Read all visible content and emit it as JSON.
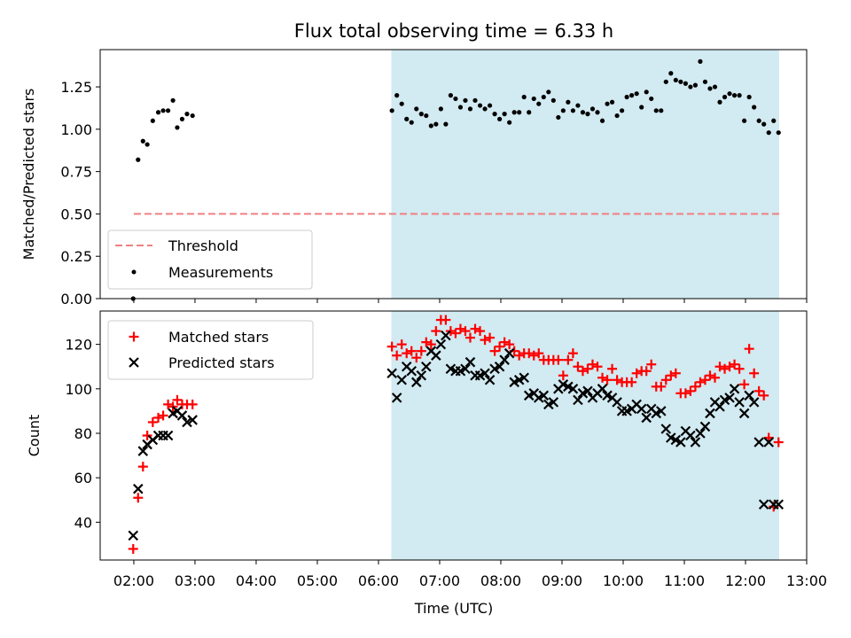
{
  "title": "Flux total observing time = 6.33 h",
  "xlabel": "Time (UTC)",
  "xticks": [
    {
      "h": 2,
      "label": "02:00"
    },
    {
      "h": 3,
      "label": "03:00"
    },
    {
      "h": 4,
      "label": "04:00"
    },
    {
      "h": 5,
      "label": "05:00"
    },
    {
      "h": 6,
      "label": "06:00"
    },
    {
      "h": 7,
      "label": "07:00"
    },
    {
      "h": 8,
      "label": "08:00"
    },
    {
      "h": 9,
      "label": "09:00"
    },
    {
      "h": 10,
      "label": "10:00"
    },
    {
      "h": 11,
      "label": "11:00"
    },
    {
      "h": 12,
      "label": "12:00"
    },
    {
      "h": 13,
      "label": "13:00"
    }
  ],
  "colors": {
    "threshold": "#f08080",
    "span": "#add8e6",
    "matched": "#ff0000",
    "predicted": "#000000",
    "measure": "#000000"
  },
  "chart_data": [
    {
      "type": "scatter",
      "panel": "top",
      "ylabel": "Matched/Predicted stars",
      "xlim": [
        1.45,
        13.0
      ],
      "ylim": [
        0.0,
        1.47
      ],
      "yticks": [
        {
          "v": 0.0,
          "label": "0.00"
        },
        {
          "v": 0.25,
          "label": "0.25"
        },
        {
          "v": 0.5,
          "label": "0.50"
        },
        {
          "v": 0.75,
          "label": "0.75"
        },
        {
          "v": 1.0,
          "label": "1.00"
        },
        {
          "v": 1.25,
          "label": "1.25"
        }
      ],
      "observing_span": [
        6.21,
        12.55
      ],
      "threshold": {
        "value": 0.5,
        "x": [
          2.0,
          12.55
        ],
        "label": "Threshold"
      },
      "legend": {
        "position": "lower-left",
        "entries": [
          "Threshold",
          "Measurements"
        ]
      },
      "series": [
        {
          "name": "Measurements",
          "x": [
            1.99,
            2.07,
            2.15,
            2.22,
            2.31,
            2.4,
            2.48,
            2.56,
            2.64,
            2.71,
            2.79,
            2.87,
            2.96,
            6.22,
            6.3,
            6.38,
            6.46,
            6.54,
            6.62,
            6.7,
            6.78,
            6.86,
            6.94,
            7.02,
            7.1,
            7.18,
            7.26,
            7.34,
            7.42,
            7.5,
            7.58,
            7.66,
            7.74,
            7.82,
            7.9,
            7.98,
            8.06,
            8.14,
            8.22,
            8.3,
            8.38,
            8.46,
            8.54,
            8.62,
            8.7,
            8.78,
            8.86,
            8.94,
            9.02,
            9.1,
            9.18,
            9.26,
            9.34,
            9.42,
            9.5,
            9.58,
            9.66,
            9.74,
            9.82,
            9.9,
            9.98,
            10.06,
            10.14,
            10.22,
            10.3,
            10.38,
            10.46,
            10.54,
            10.62,
            10.7,
            10.78,
            10.86,
            10.94,
            11.02,
            11.1,
            11.18,
            11.26,
            11.34,
            11.42,
            11.5,
            11.58,
            11.66,
            11.74,
            11.82,
            11.9,
            11.98,
            12.06,
            12.14,
            12.22,
            12.3,
            12.38,
            12.46,
            12.54
          ],
          "y": [
            0.0,
            0.82,
            0.93,
            0.91,
            1.05,
            1.1,
            1.11,
            1.11,
            1.17,
            1.01,
            1.06,
            1.09,
            1.08,
            1.11,
            1.2,
            1.15,
            1.06,
            1.04,
            1.12,
            1.09,
            1.08,
            1.02,
            1.03,
            1.12,
            1.03,
            1.2,
            1.18,
            1.13,
            1.17,
            1.12,
            1.17,
            1.14,
            1.12,
            1.14,
            1.09,
            1.06,
            1.09,
            1.04,
            1.1,
            1.1,
            1.19,
            1.1,
            1.18,
            1.15,
            1.19,
            1.22,
            1.17,
            1.07,
            1.11,
            1.16,
            1.11,
            1.14,
            1.1,
            1.09,
            1.12,
            1.1,
            1.05,
            1.15,
            1.16,
            1.08,
            1.11,
            1.19,
            1.2,
            1.21,
            1.13,
            1.22,
            1.18,
            1.11,
            1.11,
            1.28,
            1.33,
            1.29,
            1.28,
            1.27,
            1.25,
            1.26,
            1.4,
            1.28,
            1.24,
            1.25,
            1.16,
            1.19,
            1.21,
            1.2,
            1.2,
            1.05,
            1.19,
            1.13,
            1.05,
            1.03,
            0.98,
            1.05,
            0.98
          ]
        }
      ]
    },
    {
      "type": "scatter",
      "panel": "bottom",
      "ylabel": "Count",
      "xlim": [
        1.45,
        13.0
      ],
      "ylim": [
        23,
        135
      ],
      "yticks": [
        {
          "v": 40,
          "label": "40"
        },
        {
          "v": 60,
          "label": "60"
        },
        {
          "v": 80,
          "label": "80"
        },
        {
          "v": 100,
          "label": "100"
        },
        {
          "v": 120,
          "label": "120"
        }
      ],
      "observing_span": [
        6.21,
        12.55
      ],
      "legend": {
        "position": "upper-left",
        "entries": [
          "Matched stars",
          "Predicted stars"
        ]
      },
      "series": [
        {
          "name": "Matched stars",
          "marker": "plus",
          "x": [
            1.99,
            2.07,
            2.15,
            2.22,
            2.31,
            2.4,
            2.48,
            2.56,
            2.64,
            2.71,
            2.79,
            2.87,
            2.96,
            6.22,
            6.3,
            6.38,
            6.46,
            6.54,
            6.62,
            6.7,
            6.78,
            6.86,
            6.94,
            7.02,
            7.1,
            7.18,
            7.26,
            7.34,
            7.42,
            7.5,
            7.58,
            7.66,
            7.74,
            7.82,
            7.9,
            7.98,
            8.06,
            8.14,
            8.22,
            8.3,
            8.38,
            8.46,
            8.54,
            8.62,
            8.7,
            8.78,
            8.86,
            8.94,
            9.02,
            9.1,
            9.18,
            9.26,
            9.34,
            9.42,
            9.5,
            9.58,
            9.66,
            9.74,
            9.82,
            9.9,
            9.98,
            10.06,
            10.14,
            10.22,
            10.3,
            10.38,
            10.46,
            10.54,
            10.62,
            10.7,
            10.78,
            10.86,
            10.94,
            11.02,
            11.1,
            11.18,
            11.26,
            11.34,
            11.42,
            11.5,
            11.58,
            11.66,
            11.74,
            11.82,
            11.9,
            11.98,
            12.06,
            12.14,
            12.22,
            12.3,
            12.38,
            12.46,
            12.54
          ],
          "y": [
            28,
            51,
            65,
            79,
            85,
            87,
            88,
            93,
            92,
            95,
            93,
            93,
            93,
            119,
            115,
            120,
            116,
            117,
            114,
            117,
            121,
            120,
            126,
            131,
            131,
            126,
            125,
            127,
            126,
            123,
            127,
            126,
            122,
            123,
            117,
            119,
            121,
            120,
            117,
            115,
            116,
            116,
            115,
            116,
            113,
            113,
            113,
            113,
            106,
            113,
            116,
            110,
            108,
            109,
            111,
            110,
            105,
            104,
            109,
            104,
            103,
            103,
            103,
            107,
            108,
            108,
            111,
            101,
            101,
            104,
            106,
            107,
            98,
            98,
            99,
            101,
            103,
            104,
            106,
            105,
            110,
            109,
            110,
            111,
            109,
            102,
            118,
            107,
            99,
            97,
            78,
            47,
            76
          ]
        },
        {
          "name": "Predicted stars",
          "marker": "x",
          "x": [
            1.99,
            2.07,
            2.15,
            2.22,
            2.31,
            2.4,
            2.48,
            2.56,
            2.64,
            2.71,
            2.79,
            2.87,
            2.96,
            6.22,
            6.3,
            6.38,
            6.46,
            6.54,
            6.62,
            6.7,
            6.78,
            6.86,
            6.94,
            7.02,
            7.1,
            7.18,
            7.26,
            7.34,
            7.42,
            7.5,
            7.58,
            7.66,
            7.74,
            7.82,
            7.9,
            7.98,
            8.06,
            8.14,
            8.22,
            8.3,
            8.38,
            8.46,
            8.54,
            8.62,
            8.7,
            8.78,
            8.86,
            8.94,
            9.02,
            9.1,
            9.18,
            9.26,
            9.34,
            9.42,
            9.5,
            9.58,
            9.66,
            9.74,
            9.82,
            9.9,
            9.98,
            10.06,
            10.14,
            10.22,
            10.3,
            10.38,
            10.46,
            10.54,
            10.62,
            10.7,
            10.78,
            10.86,
            10.94,
            11.02,
            11.1,
            11.18,
            11.26,
            11.34,
            11.42,
            11.5,
            11.58,
            11.66,
            11.74,
            11.82,
            11.9,
            11.98,
            12.06,
            12.14,
            12.22,
            12.3,
            12.38,
            12.46,
            12.54
          ],
          "y": [
            34,
            55,
            72,
            75,
            77,
            79,
            79,
            79,
            89,
            90,
            88,
            85,
            86,
            107,
            96,
            104,
            110,
            108,
            103,
            106,
            110,
            117,
            115,
            120,
            124,
            109,
            108,
            108,
            109,
            112,
            106,
            106,
            107,
            104,
            109,
            110,
            113,
            116,
            103,
            104,
            105,
            97,
            98,
            96,
            97,
            93,
            94,
            100,
            102,
            101,
            100,
            95,
            98,
            99,
            96,
            98,
            100,
            97,
            96,
            94,
            90,
            90,
            91,
            93,
            91,
            87,
            91,
            89,
            90,
            82,
            78,
            77,
            76,
            81,
            79,
            76,
            80,
            83,
            89,
            94,
            92,
            95,
            96,
            100,
            94,
            89,
            97,
            94,
            76,
            48,
            76,
            48,
            48
          ]
        }
      ]
    }
  ]
}
